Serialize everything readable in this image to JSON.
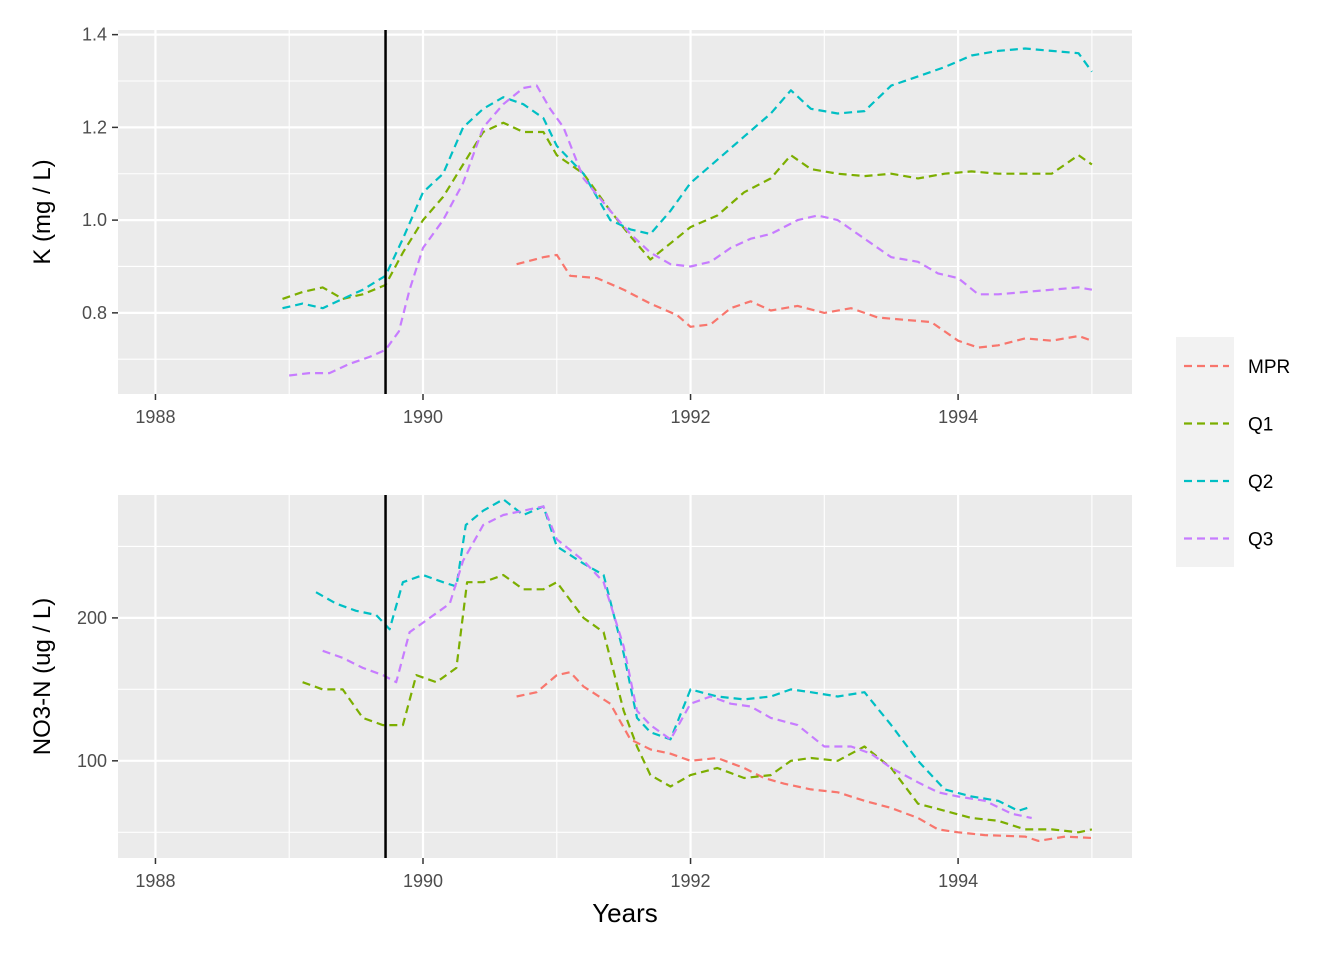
{
  "chart_data": [
    {
      "type": "line",
      "ylabel": "K (mg / L)",
      "xlabel": "",
      "xlim": [
        1987.72,
        1995.3
      ],
      "ylim": [
        0.625,
        1.41
      ],
      "x_ticks": [
        1988,
        1990,
        1992,
        1994
      ],
      "x_tick_labels": [
        "1988",
        "1990",
        "1992",
        "1994"
      ],
      "y_ticks": [
        0.8,
        1.0,
        1.2,
        1.4
      ],
      "y_tick_labels": [
        "0.8",
        "1.0",
        "1.2",
        "1.4"
      ],
      "vline_x": 1989.72,
      "grid": true,
      "series": [
        {
          "name": "MPR",
          "color": "#F8766D",
          "dash": "dashed",
          "x": [
            1990.7,
            1990.9,
            1991.0,
            1991.1,
            1991.3,
            1991.5,
            1991.7,
            1991.9,
            1992.0,
            1992.15,
            1992.3,
            1992.45,
            1992.6,
            1992.8,
            1993.0,
            1993.2,
            1993.4,
            1993.6,
            1993.8,
            1994.0,
            1994.15,
            1994.3,
            1994.5,
            1994.7,
            1994.9,
            1995.0
          ],
          "y": [
            0.905,
            0.92,
            0.925,
            0.88,
            0.875,
            0.85,
            0.82,
            0.795,
            0.77,
            0.775,
            0.81,
            0.825,
            0.805,
            0.815,
            0.8,
            0.81,
            0.79,
            0.785,
            0.78,
            0.74,
            0.725,
            0.73,
            0.745,
            0.74,
            0.75,
            0.74
          ]
        },
        {
          "name": "Q1",
          "color": "#7CAE00",
          "dash": "dashed",
          "x": [
            1988.95,
            1989.1,
            1989.25,
            1989.4,
            1989.55,
            1989.72,
            1989.85,
            1990.0,
            1990.15,
            1990.3,
            1990.45,
            1990.6,
            1990.75,
            1990.9,
            1991.0,
            1991.2,
            1991.4,
            1991.55,
            1991.7,
            1991.85,
            1992.0,
            1992.2,
            1992.4,
            1992.6,
            1992.75,
            1992.9,
            1993.1,
            1993.3,
            1993.5,
            1993.7,
            1993.9,
            1994.1,
            1994.3,
            1994.5,
            1994.7,
            1994.9,
            1995.0
          ],
          "y": [
            0.83,
            0.845,
            0.855,
            0.83,
            0.84,
            0.86,
            0.93,
            1.0,
            1.05,
            1.12,
            1.19,
            1.21,
            1.19,
            1.19,
            1.14,
            1.1,
            1.02,
            0.965,
            0.915,
            0.95,
            0.985,
            1.01,
            1.06,
            1.09,
            1.14,
            1.11,
            1.1,
            1.095,
            1.1,
            1.09,
            1.1,
            1.105,
            1.1,
            1.1,
            1.1,
            1.14,
            1.12
          ]
        },
        {
          "name": "Q2",
          "color": "#00BFC4",
          "dash": "dashed",
          "x": [
            1988.95,
            1989.1,
            1989.25,
            1989.4,
            1989.55,
            1989.72,
            1989.85,
            1990.0,
            1990.15,
            1990.3,
            1990.45,
            1990.6,
            1990.75,
            1990.9,
            1991.0,
            1991.2,
            1991.4,
            1991.55,
            1991.7,
            1991.85,
            1992.0,
            1992.2,
            1992.4,
            1992.6,
            1992.75,
            1992.9,
            1993.1,
            1993.3,
            1993.5,
            1993.7,
            1993.9,
            1994.1,
            1994.3,
            1994.5,
            1994.7,
            1994.9,
            1995.0
          ],
          "y": [
            0.81,
            0.82,
            0.81,
            0.83,
            0.85,
            0.88,
            0.96,
            1.06,
            1.1,
            1.2,
            1.24,
            1.265,
            1.25,
            1.22,
            1.16,
            1.1,
            1.0,
            0.98,
            0.97,
            1.02,
            1.08,
            1.13,
            1.18,
            1.23,
            1.28,
            1.24,
            1.23,
            1.235,
            1.29,
            1.31,
            1.33,
            1.355,
            1.365,
            1.37,
            1.365,
            1.36,
            1.32
          ]
        },
        {
          "name": "Q3",
          "color": "#C77CFF",
          "dash": "dashed",
          "x": [
            1989.0,
            1989.15,
            1989.3,
            1989.45,
            1989.6,
            1989.72,
            1989.82,
            1989.9,
            1990.0,
            1990.15,
            1990.3,
            1990.45,
            1990.6,
            1990.75,
            1990.85,
            1990.95,
            1991.05,
            1991.2,
            1991.4,
            1991.55,
            1991.7,
            1991.85,
            1992.0,
            1992.15,
            1992.3,
            1992.45,
            1992.6,
            1992.8,
            1992.95,
            1993.1,
            1993.3,
            1993.5,
            1993.7,
            1993.85,
            1994.0,
            1994.15,
            1994.3,
            1994.5,
            1994.7,
            1994.9,
            1995.0
          ],
          "y": [
            0.665,
            0.67,
            0.67,
            0.69,
            0.705,
            0.72,
            0.76,
            0.85,
            0.94,
            1.0,
            1.08,
            1.2,
            1.25,
            1.285,
            1.29,
            1.24,
            1.2,
            1.09,
            1.02,
            0.97,
            0.93,
            0.905,
            0.9,
            0.91,
            0.94,
            0.96,
            0.97,
            1.0,
            1.01,
            1.0,
            0.96,
            0.92,
            0.91,
            0.885,
            0.875,
            0.84,
            0.84,
            0.845,
            0.85,
            0.855,
            0.85
          ]
        }
      ]
    },
    {
      "type": "line",
      "ylabel": "NO3-N (ug / L)",
      "xlabel": "Years",
      "xlim": [
        1987.72,
        1995.3
      ],
      "ylim": [
        32,
        286
      ],
      "x_ticks": [
        1988,
        1990,
        1992,
        1994
      ],
      "x_tick_labels": [
        "1988",
        "1990",
        "1992",
        "1994"
      ],
      "y_ticks": [
        100,
        200
      ],
      "y_tick_labels": [
        "100",
        "200"
      ],
      "vline_x": 1989.72,
      "grid": true,
      "series": [
        {
          "name": "MPR",
          "color": "#F8766D",
          "dash": "dashed",
          "x": [
            1990.7,
            1990.85,
            1991.0,
            1991.1,
            1991.2,
            1991.4,
            1991.55,
            1991.7,
            1991.85,
            1992.0,
            1992.2,
            1992.4,
            1992.55,
            1992.7,
            1992.9,
            1993.1,
            1993.3,
            1993.5,
            1993.7,
            1993.85,
            1994.0,
            1994.2,
            1994.5,
            1994.6,
            1994.8,
            1995.0
          ],
          "y": [
            145,
            148,
            160,
            162,
            152,
            140,
            115,
            108,
            105,
            100,
            102,
            95,
            88,
            84,
            80,
            78,
            72,
            67,
            60,
            52,
            50,
            48,
            47,
            44,
            47,
            46
          ]
        },
        {
          "name": "Q1",
          "color": "#7CAE00",
          "dash": "dashed",
          "x": [
            1989.1,
            1989.25,
            1989.4,
            1989.55,
            1989.7,
            1989.85,
            1989.95,
            1990.1,
            1990.25,
            1990.33,
            1990.45,
            1990.6,
            1990.75,
            1990.9,
            1991.0,
            1991.2,
            1991.35,
            1991.5,
            1991.6,
            1991.7,
            1991.85,
            1992.0,
            1992.2,
            1992.4,
            1992.6,
            1992.75,
            1992.9,
            1993.1,
            1993.3,
            1993.5,
            1993.7,
            1993.9,
            1994.1,
            1994.3,
            1994.5,
            1994.7,
            1994.9,
            1995.0
          ],
          "y": [
            155,
            150,
            150,
            130,
            125,
            125,
            160,
            155,
            165,
            225,
            225,
            230,
            220,
            220,
            225,
            200,
            190,
            135,
            110,
            90,
            82,
            90,
            95,
            88,
            90,
            100,
            102,
            100,
            110,
            95,
            70,
            65,
            60,
            58,
            52,
            52,
            50,
            52
          ]
        },
        {
          "name": "Q2",
          "color": "#00BFC4",
          "dash": "dashed",
          "x": [
            1989.2,
            1989.35,
            1989.5,
            1989.65,
            1989.75,
            1989.85,
            1990.0,
            1990.15,
            1990.25,
            1990.32,
            1990.45,
            1990.6,
            1990.75,
            1990.9,
            1991.0,
            1991.2,
            1991.35,
            1991.5,
            1991.6,
            1991.7,
            1991.85,
            1992.0,
            1992.2,
            1992.4,
            1992.6,
            1992.75,
            1992.9,
            1993.1,
            1993.3,
            1993.5,
            1993.7,
            1993.9,
            1994.1,
            1994.3,
            1994.45,
            1994.55
          ],
          "y": [
            218,
            210,
            205,
            202,
            192,
            225,
            230,
            225,
            222,
            265,
            275,
            283,
            272,
            278,
            250,
            238,
            230,
            175,
            130,
            120,
            115,
            150,
            145,
            143,
            145,
            150,
            148,
            145,
            148,
            125,
            100,
            80,
            75,
            72,
            65,
            68
          ]
        },
        {
          "name": "Q3",
          "color": "#C77CFF",
          "dash": "dashed",
          "x": [
            1989.25,
            1989.4,
            1989.55,
            1989.7,
            1989.8,
            1989.9,
            1990.05,
            1990.2,
            1990.3,
            1990.45,
            1990.6,
            1990.75,
            1990.9,
            1991.0,
            1991.2,
            1991.35,
            1991.5,
            1991.6,
            1991.7,
            1991.85,
            1992.0,
            1992.15,
            1992.3,
            1992.45,
            1992.6,
            1992.8,
            1993.0,
            1993.2,
            1993.35,
            1993.5,
            1993.7,
            1993.85,
            1994.0,
            1994.2,
            1994.4,
            1994.55
          ],
          "y": [
            177,
            172,
            165,
            160,
            155,
            190,
            200,
            210,
            240,
            265,
            272,
            275,
            278,
            255,
            240,
            225,
            180,
            135,
            125,
            115,
            140,
            145,
            140,
            138,
            130,
            125,
            110,
            110,
            105,
            95,
            85,
            78,
            75,
            72,
            63,
            60
          ]
        }
      ]
    }
  ],
  "legend": {
    "position": "right",
    "items": [
      {
        "label": "MPR",
        "color": "#F8766D"
      },
      {
        "label": "Q1",
        "color": "#7CAE00"
      },
      {
        "label": "Q2",
        "color": "#00BFC4"
      },
      {
        "label": "Q3",
        "color": "#C77CFF"
      }
    ]
  }
}
